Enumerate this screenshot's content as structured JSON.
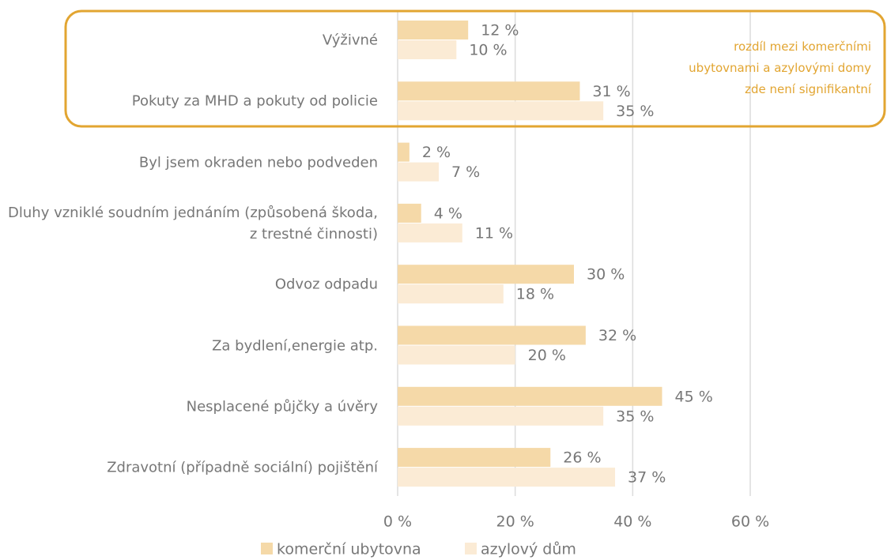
{
  "chart_data": {
    "type": "hbar",
    "categories": [
      "Výživné",
      "Pokuty za MHD a pokuty od policie",
      "Byl jsem okraden nebo podveden",
      "Dluhy vzniklé soudním jednáním (způsobená škoda, z trestné činnosti)",
      "Odvoz odpadu",
      "Za bydlení,energie atp.",
      "Nesplacené půjčky a úvěry",
      "Zdravotní  (případně sociální) pojištění"
    ],
    "series": [
      {
        "name": "komerční ubytovna",
        "color": "#f5d9a8",
        "values": [
          12,
          31,
          2,
          4,
          30,
          32,
          45,
          26
        ],
        "value_labels": [
          "12 %",
          "31 %",
          "2 %",
          "4 %",
          "30 %",
          "32 %",
          "45 %",
          "26 %"
        ]
      },
      {
        "name": "azylový dům",
        "color": "#fbebd5",
        "values": [
          10,
          35,
          7,
          11,
          18,
          20,
          35,
          37
        ],
        "value_labels": [
          "10 %",
          "35 %",
          "7 %",
          "11 %",
          "18 %",
          "20 %",
          "35 %",
          "37 %"
        ]
      }
    ],
    "xlim": [
      0,
      60
    ],
    "xticks": [
      {
        "value": 0,
        "label": "0 %"
      },
      {
        "value": 20,
        "label": "20 %"
      },
      {
        "value": 40,
        "label": "40 %"
      },
      {
        "value": 60,
        "label": "60 %"
      }
    ],
    "grid": true,
    "annotation": [
      "rozdíl mezi komerčními",
      "ubytovnami a azylovými domy",
      "zde není signifikantní"
    ],
    "annotation_color": "#e2a531"
  }
}
